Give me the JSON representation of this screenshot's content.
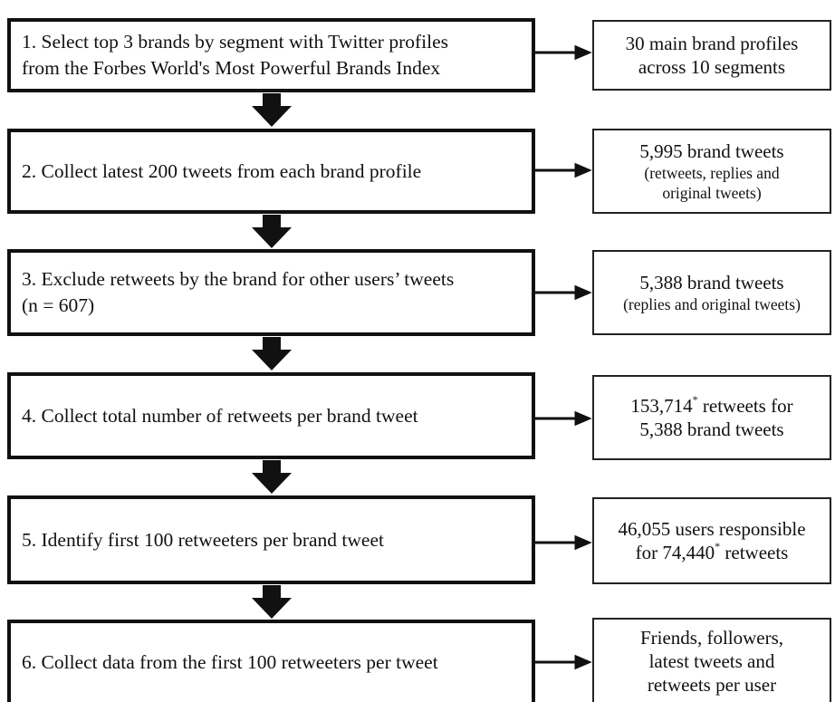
{
  "steps": [
    {
      "lines": [
        "1. Select top 3 brands by segment with Twitter profiles",
        "from the Forbes World's Most Powerful Brands Index"
      ],
      "result": {
        "main": [
          "30 main brand profiles",
          "across 10 segments"
        ],
        "sub": [],
        "sup": [
          "",
          ""
        ]
      }
    },
    {
      "lines": [
        "2. Collect latest 200 tweets from each brand profile"
      ],
      "result": {
        "main": [
          "5,995 brand tweets"
        ],
        "sub": [
          "(retweets, replies and",
          "original tweets)"
        ],
        "sup": [
          ""
        ]
      }
    },
    {
      "lines": [
        "3. Exclude retweets by the brand for other users’ tweets",
        "(n = 607)"
      ],
      "result": {
        "main": [
          "5,388 brand tweets"
        ],
        "sub": [
          "(replies and original tweets)"
        ],
        "sup": [
          ""
        ]
      }
    },
    {
      "lines": [
        "4. Collect total number of retweets per brand tweet"
      ],
      "result": {
        "main": [
          "153,714",
          "5,388 brand tweets"
        ],
        "sub": [],
        "sup": [
          "* retweets for",
          ""
        ]
      }
    },
    {
      "lines": [
        "5. Identify first 100 retweeters per brand tweet"
      ],
      "result": {
        "main": [
          "46,055 users responsible",
          "for 74,440"
        ],
        "sub": [],
        "sup": [
          "",
          "* retweets"
        ]
      }
    },
    {
      "lines": [
        "6. Collect data from the first 100 retweeters per tweet"
      ],
      "result": {
        "main": [
          "Friends, followers,",
          "latest tweets and",
          "retweets per user"
        ],
        "sub": [],
        "sup": [
          "",
          "",
          ""
        ]
      }
    }
  ]
}
